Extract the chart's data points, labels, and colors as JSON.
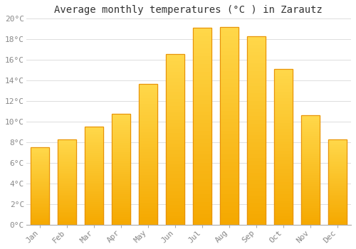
{
  "title": "Average monthly temperatures (°C ) in Zarautz",
  "months": [
    "Jan",
    "Feb",
    "Mar",
    "Apr",
    "May",
    "Jun",
    "Jul",
    "Aug",
    "Sep",
    "Oct",
    "Nov",
    "Dec"
  ],
  "values": [
    7.5,
    8.3,
    9.5,
    10.8,
    13.7,
    16.6,
    19.1,
    19.2,
    18.3,
    15.1,
    10.6,
    8.3
  ],
  "bar_color_bottom": "#F5A800",
  "bar_color_top": "#FFD84A",
  "bar_edge_color": "#E8920A",
  "ylim": [
    0,
    20
  ],
  "yticks": [
    0,
    2,
    4,
    6,
    8,
    10,
    12,
    14,
    16,
    18,
    20
  ],
  "ytick_labels": [
    "0°C",
    "2°C",
    "4°C",
    "6°C",
    "8°C",
    "10°C",
    "12°C",
    "14°C",
    "16°C",
    "18°C",
    "20°C"
  ],
  "background_color": "#FFFFFF",
  "grid_color": "#DDDDDD",
  "title_fontsize": 10,
  "tick_fontsize": 8,
  "tick_color": "#888888",
  "title_color": "#333333",
  "font_family": "monospace",
  "bar_width": 0.68
}
